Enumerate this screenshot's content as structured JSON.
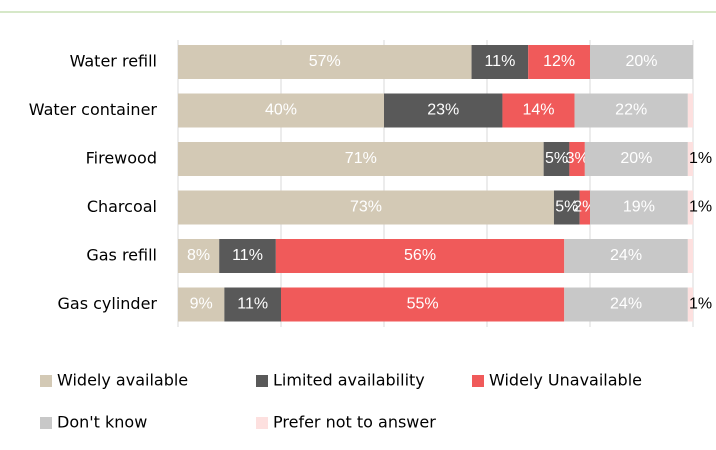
{
  "chart_data": {
    "type": "stacked_bar_horizontal",
    "categories": [
      "Water refill",
      "Water container",
      "Firewood",
      "Charcoal",
      "Gas refill",
      "Gas cylinder"
    ],
    "series": [
      {
        "name": "Widely available",
        "color": "#d3c9b5",
        "values": [
          57,
          40,
          71,
          73,
          8,
          9
        ],
        "value_labels": [
          "57%",
          "40%",
          "71%",
          "73%",
          "8%",
          "9%"
        ]
      },
      {
        "name": "Limited availability",
        "color": "#595959",
        "values": [
          11,
          23,
          5,
          5,
          11,
          11
        ],
        "value_labels": [
          "11%",
          "23%",
          "5%",
          "5%",
          "11%",
          "11%"
        ]
      },
      {
        "name": "Widely Unavailable",
        "color": "#f05a5a",
        "values": [
          12,
          14,
          3,
          2,
          56,
          55
        ],
        "value_labels": [
          "12%",
          "14%",
          "3%",
          "2%",
          "56%",
          "55%"
        ]
      },
      {
        "name": "Don't know",
        "color": "#c8c8c8",
        "values": [
          20,
          22,
          20,
          19,
          24,
          24
        ],
        "value_labels": [
          "20%",
          "22%",
          "20%",
          "19%",
          "24%",
          "24%"
        ]
      },
      {
        "name": "Prefer not to answer",
        "color": "#fde0df",
        "values": [
          0,
          1,
          1,
          1,
          1,
          1
        ],
        "value_labels": [
          null,
          null,
          "1%",
          "1%",
          null,
          "1%"
        ]
      }
    ],
    "xlim": [
      0,
      100
    ],
    "xticks": [
      0,
      20,
      40,
      60,
      80,
      100
    ],
    "grid": true
  }
}
